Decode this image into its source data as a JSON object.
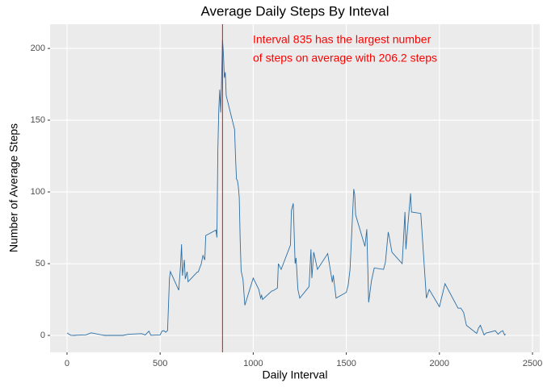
{
  "chart_data": {
    "type": "line",
    "title": "Average Daily Steps By Inteval",
    "x_label": "Daily Interval",
    "y_label": "Number of Average Steps",
    "annotations": [
      "Interval 835 has the largest number",
      "of steps on average with 206.2 steps"
    ],
    "vline": {
      "x": 835,
      "color": "#ff0000"
    },
    "xlim": [
      -91,
      2539
    ],
    "ylim": [
      -11.8,
      216.9
    ],
    "xticks": [
      0,
      500,
      1000,
      1500,
      2000,
      2500
    ],
    "yticks": [
      0,
      50,
      100,
      150,
      200
    ],
    "grid": true,
    "series": [
      {
        "color": "#2b6ea4",
        "x": [
          0,
          20,
          40,
          55,
          100,
          130,
          200,
          300,
          330,
          400,
          420,
          440,
          450,
          500,
          510,
          520,
          530,
          540,
          550,
          555,
          600,
          610,
          615,
          620,
          630,
          635,
          645,
          650,
          700,
          705,
          715,
          720,
          730,
          740,
          745,
          800,
          805,
          810,
          815,
          820,
          825,
          830,
          835,
          840,
          845,
          850,
          855,
          900,
          905,
          910,
          915,
          920,
          925,
          930,
          935,
          945,
          955,
          1000,
          1030,
          1040,
          1045,
          1050,
          1100,
          1105,
          1130,
          1135,
          1150,
          1200,
          1205,
          1215,
          1225,
          1230,
          1240,
          1250,
          1300,
          1310,
          1315,
          1325,
          1345,
          1400,
          1425,
          1430,
          1445,
          1500,
          1510,
          1520,
          1540,
          1545,
          1550,
          1600,
          1610,
          1620,
          1635,
          1650,
          1700,
          1710,
          1725,
          1730,
          1745,
          1800,
          1810,
          1815,
          1820,
          1830,
          1845,
          1850,
          1900,
          1930,
          1945,
          2000,
          2030,
          2100,
          2115,
          2130,
          2145,
          2200,
          2210,
          2220,
          2240,
          2250,
          2300,
          2315,
          2330,
          2340,
          2350,
          2355
        ],
        "values": [
          1.7,
          0.1,
          0,
          0.2,
          0.3,
          1.8,
          0,
          0,
          0.8,
          1.2,
          0.3,
          3,
          0.1,
          0.3,
          3,
          3.3,
          2.2,
          3.4,
          39.5,
          44.5,
          31.5,
          49.3,
          63.5,
          41.6,
          52.7,
          39.3,
          44.4,
          37.4,
          44.2,
          44.3,
          47.9,
          49.4,
          55.7,
          52.6,
          69.6,
          73.4,
          68.2,
          129.4,
          157.5,
          171.2,
          155.4,
          177.3,
          206.2,
          195.9,
          179.6,
          183.4,
          167,
          143.5,
          124,
          109,
          108,
          103.7,
          96,
          66,
          45,
          39,
          21,
          40,
          32,
          26,
          28,
          25,
          31,
          31,
          33,
          50,
          46,
          63,
          87,
          92,
          50,
          54,
          32,
          26,
          34,
          60,
          40,
          58,
          46,
          57,
          37,
          42,
          26,
          30,
          35,
          46,
          102,
          98,
          84,
          62,
          74,
          23,
          38,
          47,
          46,
          51,
          72,
          69,
          58,
          50,
          74,
          86,
          60,
          76,
          99,
          86,
          85,
          26,
          32,
          20,
          36,
          19,
          19,
          16,
          7,
          1.4,
          5,
          7,
          0.3,
          1.6,
          3.3,
          0.8,
          2.6,
          3.3,
          0.2,
          1.1
        ]
      }
    ]
  }
}
